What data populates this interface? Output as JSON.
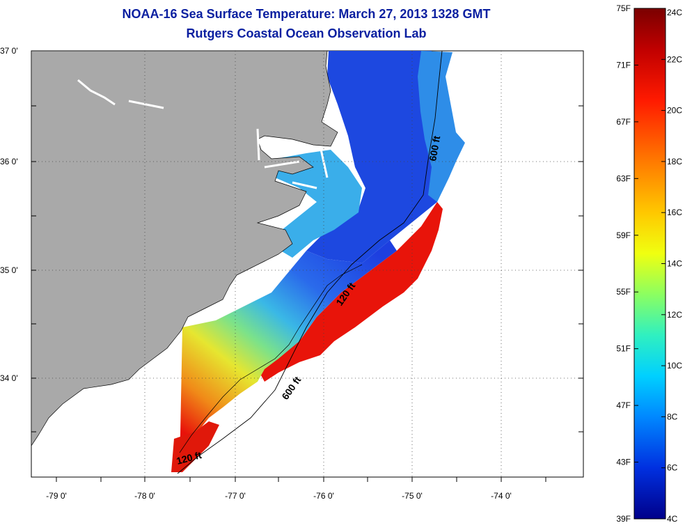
{
  "title": "NOAA-16 Sea Surface Temperature:  March 27, 2013 1328 GMT",
  "subtitle": "Rutgers Coastal Ocean Observation Lab",
  "lat_labels": [
    "37 0'",
    "36 0'",
    "35 0'",
    "34 0'"
  ],
  "lon_labels": [
    "-79 0'",
    "-78 0'",
    "-77 0'",
    "-76 0'",
    "-75 0'",
    "-74 0'"
  ],
  "contour_labels": {
    "c600_north": "600 ft",
    "c120_mid": "120 ft",
    "c600_south": "600 ft",
    "c120_south": "120 ft"
  },
  "colorbar": {
    "f_labels": [
      "75F",
      "71F",
      "67F",
      "63F",
      "59F",
      "55F",
      "51F",
      "47F",
      "43F",
      "39F"
    ],
    "c_labels": [
      "24C",
      "22C",
      "20C",
      "18C",
      "16C",
      "14C",
      "12C",
      "10C",
      "8C",
      "6C",
      "4C"
    ],
    "f_range": [
      39,
      75
    ],
    "c_range": [
      4,
      24
    ]
  },
  "colors": {
    "land": "#a9a9a9",
    "title": "#0a1fa0",
    "cold": "#1d3fe0",
    "warm": "#e8120a"
  }
}
